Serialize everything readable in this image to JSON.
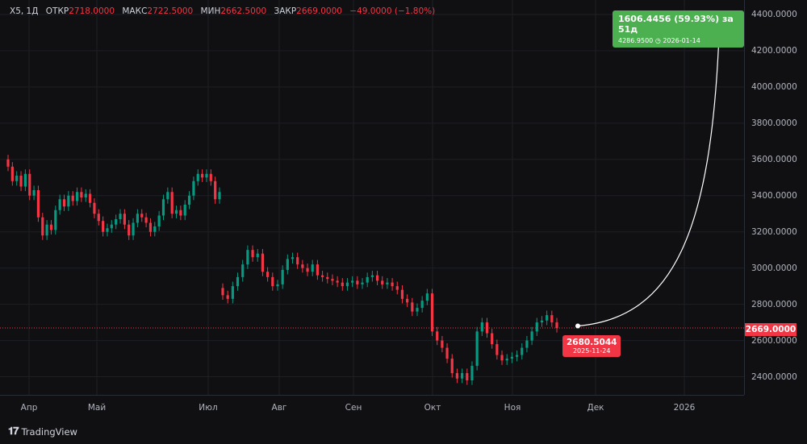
{
  "legend": {
    "symbol": "X5, 1Д",
    "open_label": "ОТКР",
    "open": "2718.0000",
    "high_label": "МАКС",
    "high": "2722.5000",
    "low_label": "МИН",
    "low": "2662.5000",
    "close_label": "ЗАКР",
    "close": "2669.0000",
    "change": "−49.0000 (−1.80%)"
  },
  "last_price_tag": "2669.0000",
  "start_point": {
    "price": "2680.5044",
    "date": "2025-11-24"
  },
  "projection": {
    "headline": "1606.4456 (59.93%) за 51д",
    "price": "4286.9500",
    "date": "2026-01-14"
  },
  "brand": "TradingView",
  "colors": {
    "up": "#089981",
    "down": "#f23645",
    "projection": "#4caf50",
    "bg": "#101013"
  },
  "chart_data": {
    "type": "candlestick",
    "y_ticks": [
      "2400.0000",
      "2600.0000",
      "2800.0000",
      "3000.0000",
      "3200.0000",
      "3400.0000",
      "3600.0000",
      "3800.0000",
      "4000.0000",
      "4200.0000",
      "4400.0000"
    ],
    "ylim": [
      2300,
      4480
    ],
    "x_ticks": [
      "Апр",
      "Май",
      "Июл",
      "Авг",
      "Сен",
      "Окт",
      "Ноя",
      "Дек",
      "2026"
    ],
    "segments": [
      {
        "closes": [
          3560,
          3480,
          3510,
          3450,
          3520,
          3400,
          3430,
          3280,
          3180,
          3240,
          3210,
          3320,
          3380,
          3340,
          3400,
          3370,
          3420,
          3390,
          3410,
          3360,
          3300,
          3260,
          3200,
          3220,
          3240,
          3270,
          3300,
          3240,
          3180,
          3250,
          3300,
          3280,
          3250,
          3200,
          3230,
          3290,
          3380,
          3420,
          3300,
          3320,
          3290,
          3350,
          3400,
          3480,
          3520,
          3500,
          3520,
          3480,
          3380,
          3420
        ]
      },
      {
        "closes": [
          2850,
          2830,
          2900,
          2950,
          3020,
          3100,
          3060,
          3080,
          2980,
          2950,
          2900,
          2910,
          2990,
          3050,
          3060,
          3020,
          3000,
          2980,
          3020,
          2960,
          2950,
          2940,
          2930,
          2920,
          2900,
          2920,
          2930,
          2910,
          2920,
          2950,
          2960,
          2930,
          2910,
          2920,
          2900,
          2880,
          2830,
          2810,
          2760,
          2780,
          2820,
          2860,
          2650,
          2600,
          2560,
          2500,
          2420,
          2390,
          2420,
          2380,
          2460,
          2650,
          2700,
          2640,
          2580,
          2520,
          2490,
          2500,
          2510,
          2520,
          2560,
          2600,
          2650,
          2700,
          2710,
          2740,
          2700,
          2669
        ]
      }
    ]
  }
}
